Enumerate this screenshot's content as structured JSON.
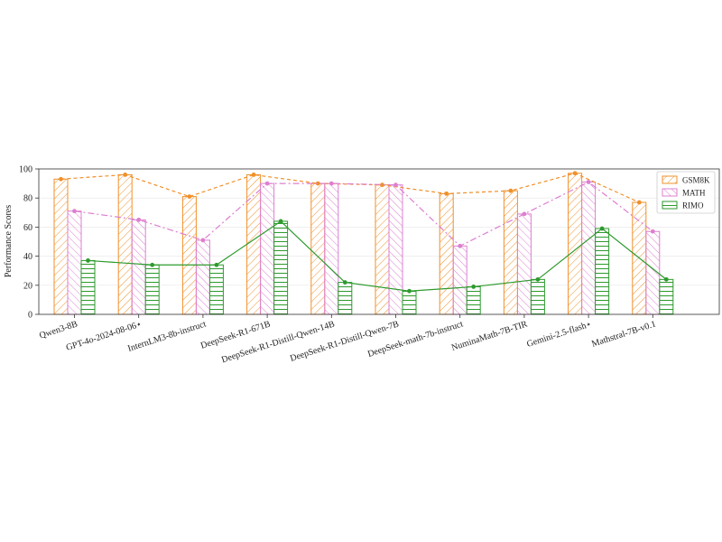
{
  "chart_data": {
    "type": "bar",
    "ylabel": "Performance Scores",
    "xlabel": "",
    "ylim": [
      0,
      100
    ],
    "yticks": [
      0,
      20,
      40,
      60,
      80,
      100
    ],
    "grid": true,
    "legend_position": "top-right",
    "categories": [
      "Qwen3-8B",
      "GPT-4o-2024-08-06⋆",
      "InternLM3-8b-instruct",
      "DeepSeek-R1-671B",
      "DeepSeek-R1-Distill-Qwen-14B",
      "DeepSeek-R1-Distill-Qwen-7B",
      "DeepSeek-math-7b-instruct",
      "NuminaMath-7B-TIR",
      "Gemini-2.5-flash⋆",
      "Mathstral-7B-v0.1"
    ],
    "series": [
      {
        "name": "GSM8K",
        "color": "#f0902a",
        "values": [
          93,
          96,
          81,
          96,
          90,
          89,
          83,
          85,
          97,
          77
        ]
      },
      {
        "name": "MATH",
        "color": "#dd7fd0",
        "values": [
          71,
          65,
          51,
          90,
          90,
          89,
          47,
          69,
          91,
          57
        ]
      },
      {
        "name": "RIMO",
        "color": "#2e9a2e",
        "values": [
          37,
          34,
          34,
          64,
          22,
          16,
          19,
          24,
          59,
          24
        ]
      }
    ]
  }
}
